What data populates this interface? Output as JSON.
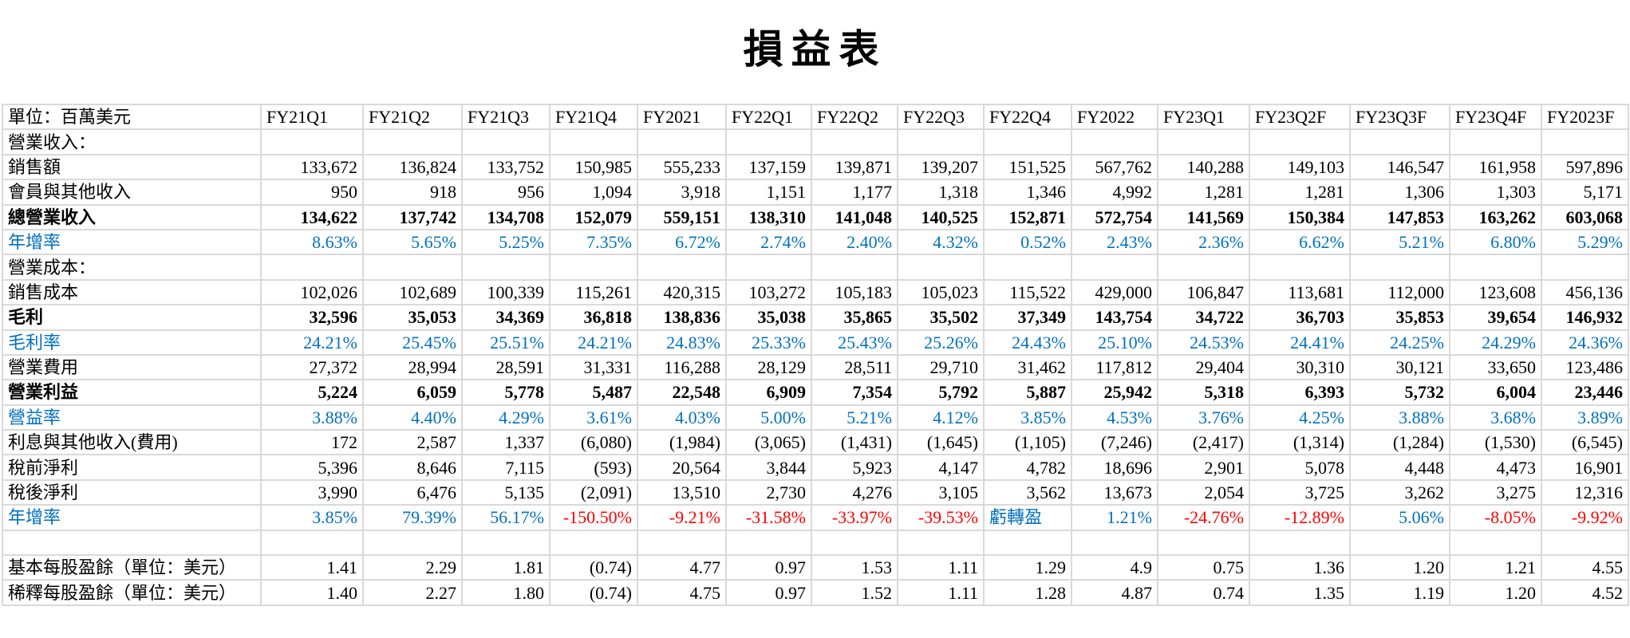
{
  "title": "損益表",
  "colors": {
    "rate": "#0070c0",
    "negative": "#ff0000",
    "grid": "#d9d9d9"
  },
  "header": {
    "label": "單位：百萬美元",
    "columns": [
      "FY21Q1",
      "FY21Q2",
      "FY21Q3",
      "FY21Q4",
      "FY2021",
      "FY22Q1",
      "FY22Q2",
      "FY22Q3",
      "FY22Q4",
      "FY2022",
      "FY23Q1",
      "FY23Q2F",
      "FY23Q3F",
      "FY23Q4F",
      "FY2023F"
    ]
  },
  "rows": [
    {
      "label": "營業收入：",
      "style": "section",
      "values": []
    },
    {
      "label": "銷售額",
      "style": "normal",
      "values": [
        "133,672",
        "136,824",
        "133,752",
        "150,985",
        "555,233",
        "137,159",
        "139,871",
        "139,207",
        "151,525",
        "567,762",
        "140,288",
        "149,103",
        "146,547",
        "161,958",
        "597,896"
      ]
    },
    {
      "label": "會員與其他收入",
      "style": "normal",
      "values": [
        "950",
        "918",
        "956",
        "1,094",
        "3,918",
        "1,151",
        "1,177",
        "1,318",
        "1,346",
        "4,992",
        "1,281",
        "1,281",
        "1,306",
        "1,303",
        "5,171"
      ]
    },
    {
      "label": "總營業收入",
      "style": "bold",
      "values": [
        "134,622",
        "137,742",
        "134,708",
        "152,079",
        "559,151",
        "138,310",
        "141,048",
        "140,525",
        "152,871",
        "572,754",
        "141,569",
        "150,384",
        "147,853",
        "163,262",
        "603,068"
      ]
    },
    {
      "label": "年增率",
      "style": "rate",
      "values": [
        "8.63%",
        "5.65%",
        "5.25%",
        "7.35%",
        "6.72%",
        "2.74%",
        "2.40%",
        "4.32%",
        "0.52%",
        "2.43%",
        "2.36%",
        "6.62%",
        "5.21%",
        "6.80%",
        "5.29%"
      ]
    },
    {
      "label": "營業成本：",
      "style": "section",
      "values": []
    },
    {
      "label": "銷售成本",
      "style": "normal",
      "values": [
        "102,026",
        "102,689",
        "100,339",
        "115,261",
        "420,315",
        "103,272",
        "105,183",
        "105,023",
        "115,522",
        "429,000",
        "106,847",
        "113,681",
        "112,000",
        "123,608",
        "456,136"
      ]
    },
    {
      "label": "毛利",
      "style": "bold",
      "values": [
        "32,596",
        "35,053",
        "34,369",
        "36,818",
        "138,836",
        "35,038",
        "35,865",
        "35,502",
        "37,349",
        "143,754",
        "34,722",
        "36,703",
        "35,853",
        "39,654",
        "146,932"
      ]
    },
    {
      "label": "毛利率",
      "style": "rate",
      "values": [
        "24.21%",
        "25.45%",
        "25.51%",
        "24.21%",
        "24.83%",
        "25.33%",
        "25.43%",
        "25.26%",
        "24.43%",
        "25.10%",
        "24.53%",
        "24.41%",
        "24.25%",
        "24.29%",
        "24.36%"
      ]
    },
    {
      "label": "營業費用",
      "style": "normal",
      "values": [
        "27,372",
        "28,994",
        "28,591",
        "31,331",
        "116,288",
        "28,129",
        "28,511",
        "29,710",
        "31,462",
        "117,812",
        "29,404",
        "30,310",
        "30,121",
        "33,650",
        "123,486"
      ]
    },
    {
      "label": "營業利益",
      "style": "bold",
      "values": [
        "5,224",
        "6,059",
        "5,778",
        "5,487",
        "22,548",
        "6,909",
        "7,354",
        "5,792",
        "5,887",
        "25,942",
        "5,318",
        "6,393",
        "5,732",
        "6,004",
        "23,446"
      ]
    },
    {
      "label": "營益率",
      "style": "rate",
      "values": [
        "3.88%",
        "4.40%",
        "4.29%",
        "3.61%",
        "4.03%",
        "5.00%",
        "5.21%",
        "4.12%",
        "3.85%",
        "4.53%",
        "3.76%",
        "4.25%",
        "3.88%",
        "3.68%",
        "3.89%"
      ]
    },
    {
      "label": "利息與其他收入(費用)",
      "style": "normal",
      "values": [
        "172",
        "2,587",
        "1,337",
        "(6,080)",
        "(1,984)",
        "(3,065)",
        "(1,431)",
        "(1,645)",
        "(1,105)",
        "(7,246)",
        "(2,417)",
        "(1,314)",
        "(1,284)",
        "(1,530)",
        "(6,545)"
      ]
    },
    {
      "label": "稅前淨利",
      "style": "normal",
      "values": [
        "5,396",
        "8,646",
        "7,115",
        "(593)",
        "20,564",
        "3,844",
        "5,923",
        "4,147",
        "4,782",
        "18,696",
        "2,901",
        "5,078",
        "4,448",
        "4,473",
        "16,901"
      ]
    },
    {
      "label": "稅後淨利",
      "style": "normal",
      "values": [
        "3,990",
        "6,476",
        "5,135",
        "(2,091)",
        "13,510",
        "2,730",
        "4,276",
        "3,105",
        "3,562",
        "13,673",
        "2,054",
        "3,725",
        "3,262",
        "3,275",
        "12,316"
      ]
    },
    {
      "label": "年增率",
      "style": "rate",
      "values": [
        "3.85%",
        "79.39%",
        "56.17%",
        "-150.50%",
        "-9.21%",
        "-31.58%",
        "-33.97%",
        "-39.53%",
        "虧轉盈",
        "1.21%",
        "-24.76%",
        "-12.89%",
        "5.06%",
        "-8.05%",
        "-9.92%"
      ]
    },
    {
      "label": "",
      "style": "section",
      "values": []
    },
    {
      "label": "基本每股盈餘（單位：美元）",
      "style": "normal",
      "values": [
        "1.41",
        "2.29",
        "1.81",
        "(0.74)",
        "4.77",
        "0.97",
        "1.53",
        "1.11",
        "1.29",
        "4.9",
        "0.75",
        "1.36",
        "1.20",
        "1.21",
        "4.55"
      ]
    },
    {
      "label": "稀釋每股盈餘（單位：美元）",
      "style": "normal",
      "values": [
        "1.40",
        "2.27",
        "1.80",
        "(0.74)",
        "4.75",
        "0.97",
        "1.52",
        "1.11",
        "1.28",
        "4.87",
        "0.74",
        "1.35",
        "1.19",
        "1.20",
        "4.52"
      ]
    }
  ]
}
